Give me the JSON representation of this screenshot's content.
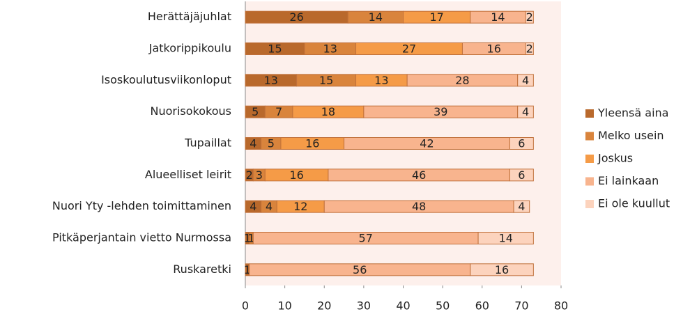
{
  "chart_data": {
    "type": "stacked-barh",
    "categories": [
      "Herättäjäjuhlat",
      "Jatkorippikoulu",
      "Isoskoulutusviikonloput",
      "Nuorisokokous",
      "Tupaillat",
      "Alueelliset leirit",
      "Nuori Yty -lehden toimittaminen",
      "Pitkäperjantain vietto Nurmossa",
      "Ruskaretki"
    ],
    "series": [
      {
        "name": "Yleensä aina",
        "color": "#b9692c",
        "values": [
          26,
          15,
          13,
          5,
          4,
          2,
          4,
          1,
          1
        ]
      },
      {
        "name": "Melko usein",
        "color": "#d9843c",
        "values": [
          14,
          13,
          15,
          7,
          5,
          3,
          4,
          1,
          null
        ]
      },
      {
        "name": "Joskus",
        "color": "#f59b47",
        "values": [
          17,
          27,
          13,
          18,
          16,
          16,
          12,
          null,
          null
        ]
      },
      {
        "name": "Ei lainkaan",
        "color": "#f8b48e",
        "values": [
          14,
          16,
          28,
          39,
          42,
          46,
          48,
          57,
          56
        ]
      },
      {
        "name": "Ei ole kuullut",
        "color": "#fcd3bd",
        "values": [
          2,
          2,
          4,
          4,
          6,
          6,
          4,
          14,
          16
        ]
      }
    ],
    "xlim": [
      0,
      80
    ],
    "xticks": [
      0,
      10,
      20,
      30,
      40,
      50,
      60,
      70,
      80
    ]
  }
}
